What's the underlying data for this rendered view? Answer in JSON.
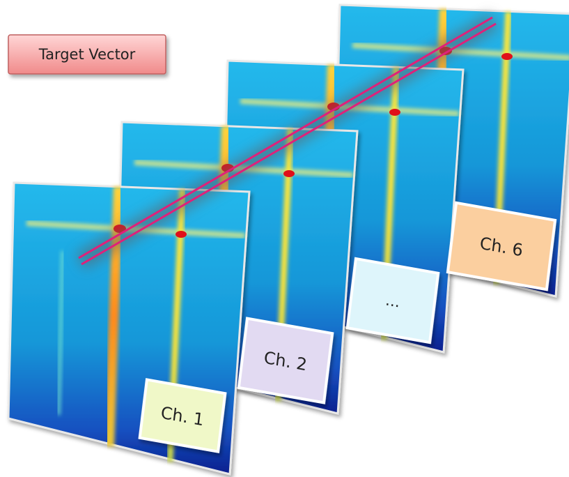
{
  "target_vector": {
    "label": "Target Vector"
  },
  "channels": [
    {
      "label": "Ch. 1"
    },
    {
      "label": "Ch. 2"
    },
    {
      "label": "..."
    },
    {
      "label": "Ch. 6"
    }
  ]
}
